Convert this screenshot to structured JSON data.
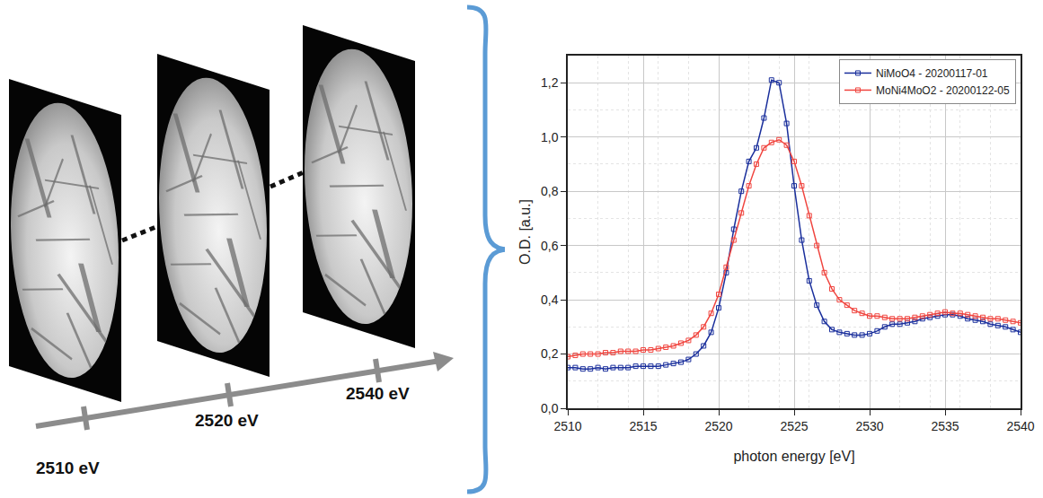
{
  "diagram": {
    "energy_labels": [
      "2510 eV",
      "2520 eV",
      "2540 eV"
    ]
  },
  "chart_data": {
    "type": "line",
    "x_label": "photon energy [eV]",
    "y_label": "O.D. [a.u.]",
    "x": [
      2510,
      2510.5,
      2511,
      2511.5,
      2512,
      2512.5,
      2513,
      2513.5,
      2514,
      2514.5,
      2515,
      2515.5,
      2516,
      2516.5,
      2517,
      2517.5,
      2518,
      2518.5,
      2519,
      2519.5,
      2520,
      2520.5,
      2521,
      2521.5,
      2522,
      2522.5,
      2523,
      2523.5,
      2524,
      2524.5,
      2525,
      2525.5,
      2526,
      2526.5,
      2527,
      2527.5,
      2528,
      2528.5,
      2529,
      2529.5,
      2530,
      2530.5,
      2531,
      2531.5,
      2532,
      2532.5,
      2533,
      2533.5,
      2534,
      2534.5,
      2535,
      2535.5,
      2536,
      2536.5,
      2537,
      2537.5,
      2538,
      2538.5,
      2539,
      2539.5,
      2540
    ],
    "series": [
      {
        "name": "NiMoO4 - 20200117-01",
        "color": "#1a2f9c",
        "marker": "open square",
        "line_style": "solid",
        "values": [
          0.15,
          0.15,
          0.145,
          0.145,
          0.15,
          0.145,
          0.15,
          0.15,
          0.15,
          0.155,
          0.155,
          0.155,
          0.155,
          0.16,
          0.165,
          0.17,
          0.18,
          0.2,
          0.23,
          0.28,
          0.37,
          0.5,
          0.66,
          0.8,
          0.91,
          0.96,
          1.07,
          1.21,
          1.2,
          1.05,
          0.82,
          0.62,
          0.47,
          0.38,
          0.32,
          0.29,
          0.28,
          0.275,
          0.27,
          0.27,
          0.275,
          0.285,
          0.3,
          0.31,
          0.31,
          0.315,
          0.32,
          0.33,
          0.335,
          0.34,
          0.345,
          0.345,
          0.34,
          0.33,
          0.325,
          0.32,
          0.31,
          0.305,
          0.3,
          0.29,
          0.28
        ]
      },
      {
        "name": "MoNi4MoO2 - 20200122-05",
        "color": "#f0453f",
        "marker": "open square",
        "line_style": "solid",
        "values": [
          0.19,
          0.195,
          0.2,
          0.2,
          0.2,
          0.205,
          0.205,
          0.21,
          0.21,
          0.21,
          0.215,
          0.215,
          0.22,
          0.225,
          0.23,
          0.24,
          0.25,
          0.27,
          0.3,
          0.35,
          0.42,
          0.52,
          0.62,
          0.72,
          0.82,
          0.9,
          0.96,
          0.98,
          0.99,
          0.97,
          0.91,
          0.82,
          0.71,
          0.6,
          0.5,
          0.44,
          0.4,
          0.38,
          0.36,
          0.35,
          0.34,
          0.34,
          0.335,
          0.33,
          0.33,
          0.33,
          0.335,
          0.34,
          0.345,
          0.35,
          0.355,
          0.35,
          0.35,
          0.345,
          0.34,
          0.335,
          0.33,
          0.33,
          0.325,
          0.32,
          0.315
        ]
      }
    ],
    "xlim": [
      2510,
      2540
    ],
    "xticks": [
      2510,
      2515,
      2520,
      2525,
      2530,
      2535,
      2540
    ],
    "ylim": [
      0,
      1.3
    ],
    "yticks": [
      {
        "value": 0,
        "label": "0,0"
      },
      {
        "value": 0.2,
        "label": "0,2"
      },
      {
        "value": 0.4,
        "label": "0,4"
      },
      {
        "value": 0.6,
        "label": "0,6"
      },
      {
        "value": 0.8,
        "label": "0,8"
      },
      {
        "value": 1.0,
        "label": "1,0"
      },
      {
        "value": 1.2,
        "label": "1,2"
      }
    ],
    "grid": true,
    "legend": "upper right"
  }
}
